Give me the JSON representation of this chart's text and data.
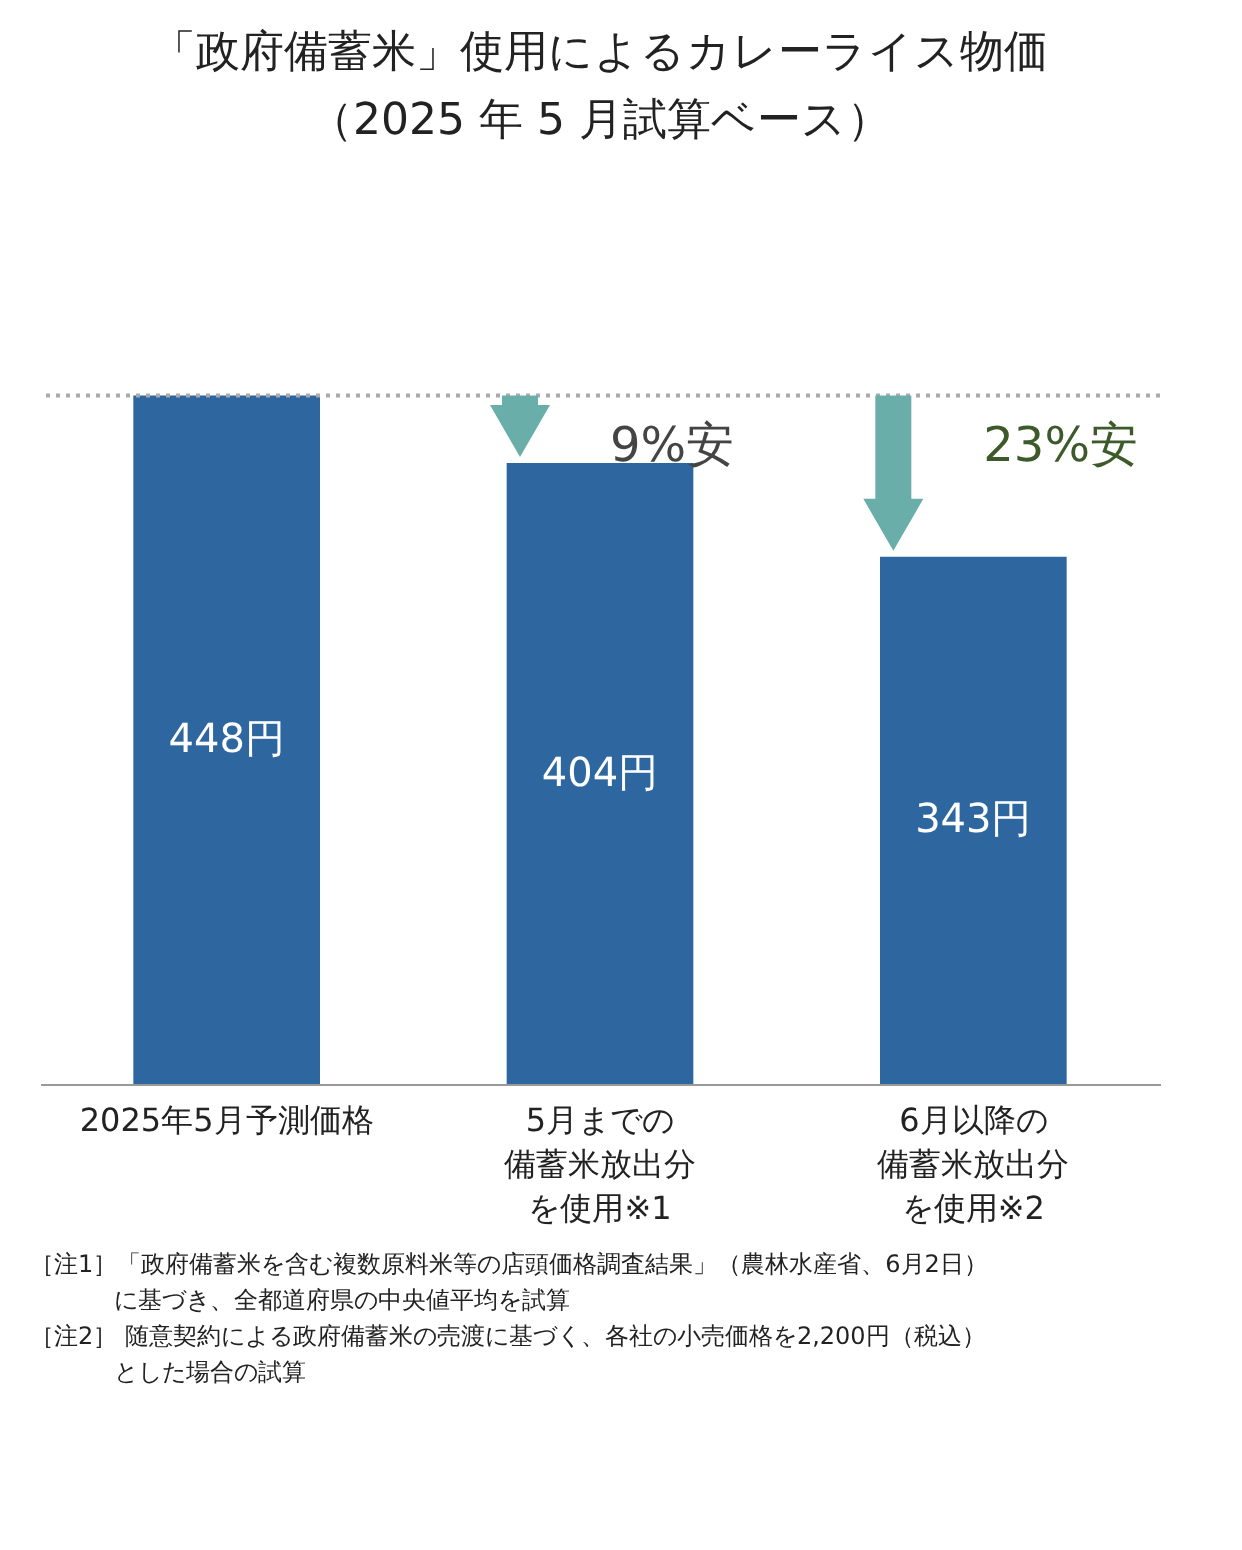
{
  "chart_data": {
    "type": "bar",
    "title": "「政府備蓄米」使用によるカレーライス物価（2025 年 5 月試算ベース）",
    "categories": [
      "2025年5月予測価格",
      "5月までの備蓄米放出分を使用※1",
      "6月以降の備蓄米放出分を使用※2"
    ],
    "values": [
      448,
      404,
      343
    ],
    "value_labels": [
      "448円",
      "404円",
      "343円"
    ],
    "color": "#2e67a0",
    "ref_lines": [
      {
        "axis": "y",
        "value": 448,
        "color": "#aaaaaa",
        "line_style": "dotted"
      }
    ],
    "annotations": [
      "9%安",
      "23%安",
      "［注1］「政府備蓄米を含む複数原料米等の店頭価格調査結果」（農林水産省、6月2日）に基づき、全都道府県の中央値平均を試算",
      "［注2］ 随意契約による政府備蓄米の売渡に基づく、各社の小売価格を2,200円（税込）とした場合の試算"
    ]
  }
}
